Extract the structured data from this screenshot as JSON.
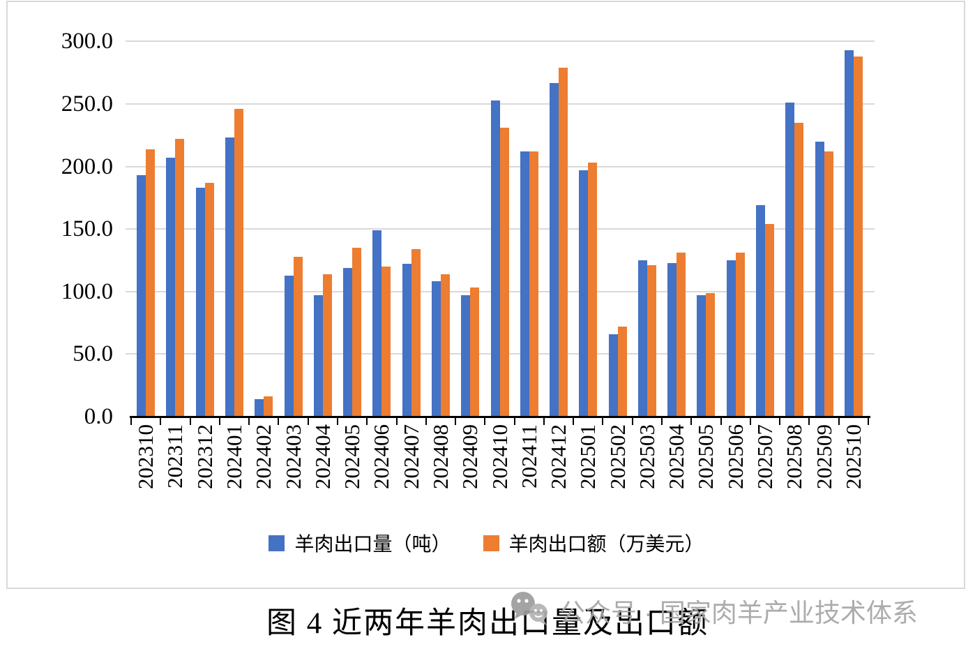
{
  "chart_data": {
    "type": "bar",
    "title": "图 4 近两年羊肉出口量及出口额",
    "categories": [
      "202310",
      "202311",
      "202312",
      "202401",
      "202402",
      "202403",
      "202404",
      "202405",
      "202406",
      "202407",
      "202408",
      "202409",
      "202410",
      "202411",
      "202412",
      "202501",
      "202502",
      "202503",
      "202504",
      "202505",
      "202506",
      "202507",
      "202508",
      "202509",
      "202510"
    ],
    "series": [
      {
        "name": "羊肉出口量（吨）",
        "color": "#4472C4",
        "values": [
          193,
          207,
          183,
          223,
          14,
          113,
          97,
          119,
          149,
          122,
          108,
          97,
          253,
          212,
          267,
          197,
          66,
          125,
          123,
          97,
          125,
          169,
          251,
          220,
          293
        ]
      },
      {
        "name": "羊肉出口额（万美元）",
        "color": "#ED7D31",
        "values": [
          214,
          222,
          187,
          246,
          16,
          128,
          114,
          135,
          120,
          134,
          114,
          103,
          231,
          212,
          279,
          203,
          72,
          121,
          131,
          99,
          131,
          154,
          235,
          212,
          288
        ]
      }
    ],
    "ylim": [
      0,
      300
    ],
    "ytick_step": 50,
    "ytick_labels": [
      "0.0",
      "50.0",
      "100.0",
      "150.0",
      "200.0",
      "250.0",
      "300.0"
    ],
    "grid": true,
    "legend_position": "bottom",
    "gridline_color": "#d9d9d9",
    "axis_color": "#000000"
  },
  "caption": {
    "title": "图 4 近两年羊肉出口量及出口额"
  },
  "watermark": {
    "icon": "wechat-icon",
    "text": "公众号 · 国家肉羊产业技术体系",
    "color": "#a6a6a6"
  }
}
